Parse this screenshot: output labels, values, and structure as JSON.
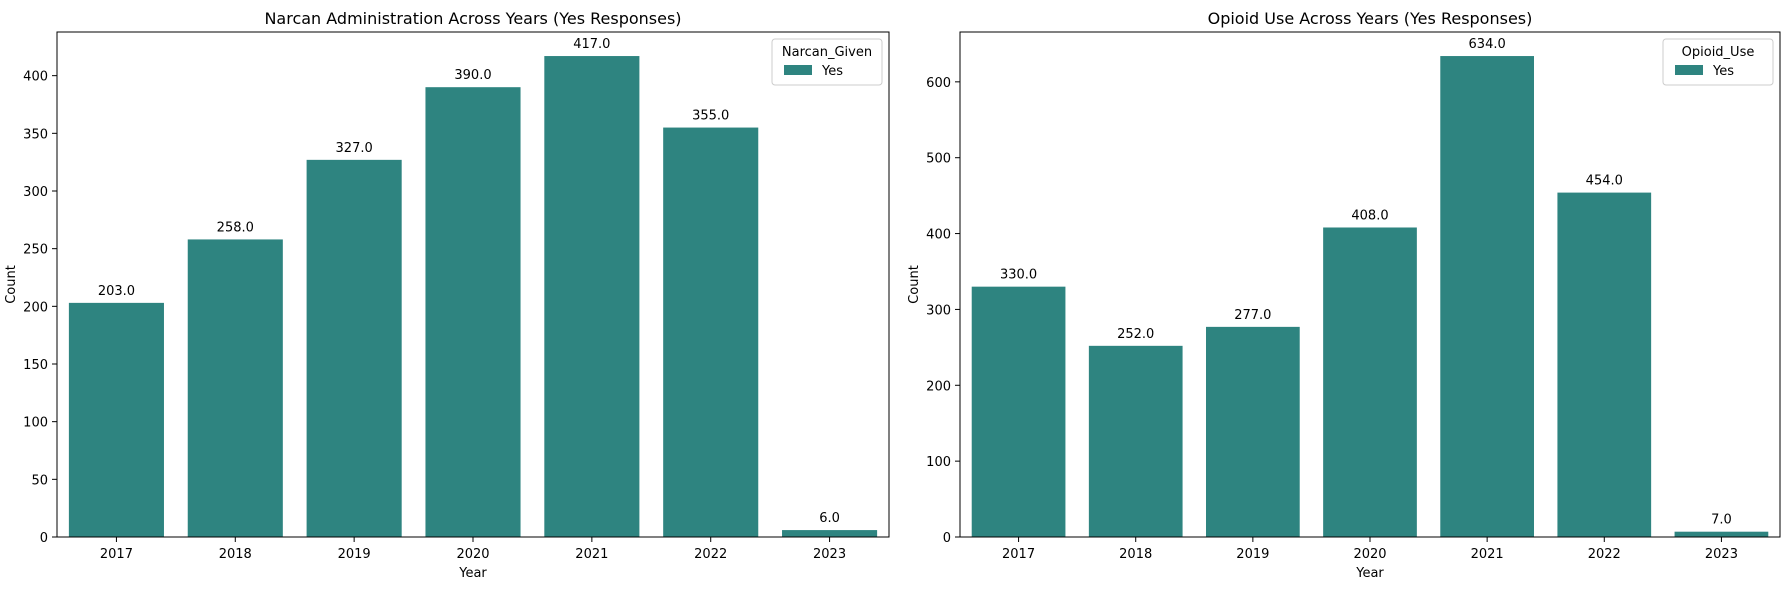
{
  "chart_data": [
    {
      "type": "bar",
      "title": "Narcan Administration Across Years (Yes Responses)",
      "xlabel": "Year",
      "ylabel": "Count",
      "categories": [
        "2017",
        "2018",
        "2019",
        "2020",
        "2021",
        "2022",
        "2023"
      ],
      "series": [
        {
          "name": "Yes",
          "values": [
            203,
            258,
            327,
            390,
            417,
            355,
            6
          ]
        }
      ],
      "data_labels": [
        "203.0",
        "258.0",
        "327.0",
        "390.0",
        "417.0",
        "355.0",
        "6.0"
      ],
      "ylim": [
        0,
        437.85
      ],
      "yticks": [
        0,
        50,
        100,
        150,
        200,
        250,
        300,
        350,
        400
      ],
      "legend": {
        "title": "Narcan_Given",
        "placement": "top-right"
      },
      "grid": false,
      "bar_color": "#2e8480"
    },
    {
      "type": "bar",
      "title": "Opioid Use Across Years (Yes Responses)",
      "xlabel": "Year",
      "ylabel": "Count",
      "categories": [
        "2017",
        "2018",
        "2019",
        "2020",
        "2021",
        "2022",
        "2023"
      ],
      "series": [
        {
          "name": "Yes",
          "values": [
            330,
            252,
            277,
            408,
            634,
            454,
            7
          ]
        }
      ],
      "data_labels": [
        "330.0",
        "252.0",
        "277.0",
        "408.0",
        "634.0",
        "454.0",
        "7.0"
      ],
      "ylim": [
        0,
        665.7
      ],
      "yticks": [
        0,
        100,
        200,
        300,
        400,
        500,
        600
      ],
      "legend": {
        "title": "Opioid_Use",
        "placement": "top-right"
      },
      "grid": false,
      "bar_color": "#2e8480"
    }
  ]
}
